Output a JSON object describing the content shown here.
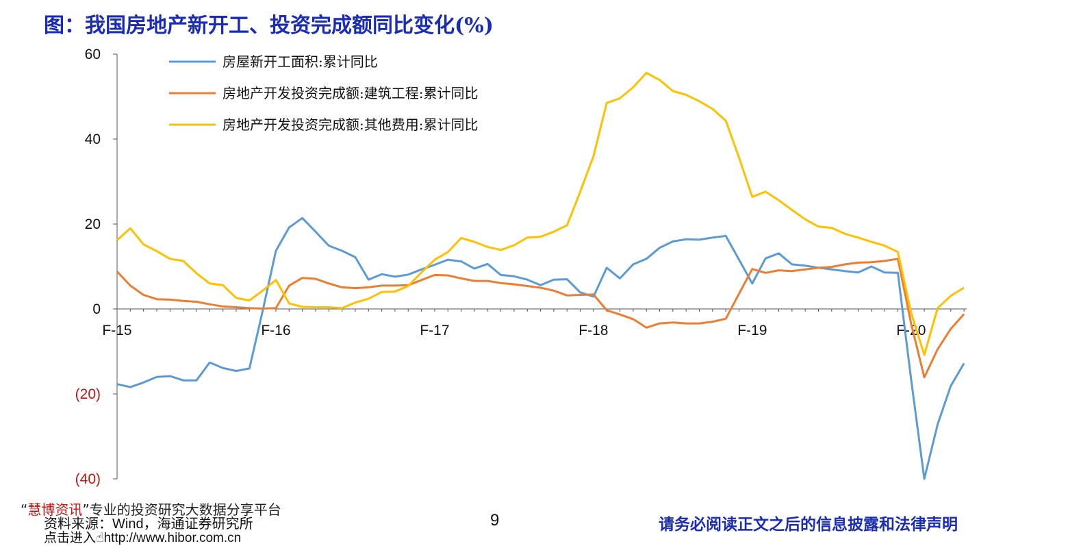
{
  "page": {
    "title": "图：我国房地产新开工、投资完成额同比变化(%)",
    "promo_quote_open": "“",
    "promo_brand": "慧博资讯",
    "promo_text": "”专业的投资研究大数据分享平台",
    "source_label": "资料来源：",
    "source_value": "Wind，海通证券研究所",
    "enter_label": "点击进入",
    "enter_url": "http://www.hibor.com.cn",
    "page_number": "9",
    "disclaimer": "请务必阅读正文之后的信息披露和法律声明"
  },
  "colors": {
    "title": "#1a2bb5",
    "series_1": "#5b9bd5",
    "series_2": "#ed7d31",
    "series_3": "#ffc000",
    "negative_tick": "#d01010"
  },
  "chart_data": {
    "type": "line",
    "title": "",
    "xlabel": "",
    "ylabel": "",
    "ylim": [
      -40,
      60
    ],
    "yticks": [
      60,
      40,
      20,
      0,
      -20,
      -40
    ],
    "ytick_labels": [
      "60",
      "40",
      "20",
      "0",
      "(20)",
      "(40)"
    ],
    "grid": false,
    "legend_position": "top-left",
    "x_start": "2015-02",
    "x_tick_labels": [
      {
        "label": "F-15",
        "index": 0
      },
      {
        "label": "F-16",
        "index": 12
      },
      {
        "label": "F-17",
        "index": 24
      },
      {
        "label": "F-18",
        "index": 36
      },
      {
        "label": "F-19",
        "index": 48
      },
      {
        "label": "F-20",
        "index": 60
      }
    ],
    "series": [
      {
        "name": "房屋新开工面积:累计同比",
        "color": "#5b9bd5",
        "values": [
          -17.7,
          -18.4,
          -17.3,
          -16.0,
          -15.8,
          -16.8,
          -16.8,
          -12.6,
          -13.9,
          -14.6,
          -14.0,
          -0.5,
          13.7,
          19.2,
          21.4,
          18.2,
          14.9,
          13.7,
          12.2,
          6.9,
          8.2,
          7.6,
          8.1,
          9.3,
          10.4,
          11.6,
          11.2,
          9.5,
          10.6,
          8.0,
          7.7,
          6.9,
          5.6,
          6.9,
          7.0,
          3.9,
          2.9,
          9.7,
          7.2,
          10.5,
          11.8,
          14.4,
          15.9,
          16.4,
          16.3,
          16.8,
          17.2,
          11.6,
          6.0,
          11.9,
          13.1,
          10.5,
          10.2,
          9.7,
          9.3,
          8.9,
          8.6,
          10.0,
          8.6,
          8.5,
          -16.5,
          -44.9,
          -27.2,
          -18.1,
          -12.8
        ]
      },
      {
        "name": "房地产开发投资完成额:建筑工程:累计同比",
        "color": "#ed7d31",
        "values": [
          8.8,
          5.5,
          3.3,
          2.3,
          2.2,
          1.9,
          1.7,
          1.1,
          0.6,
          0.4,
          0.2,
          0.1,
          0.2,
          5.5,
          7.3,
          7.1,
          6.0,
          5.1,
          4.9,
          5.1,
          5.5,
          5.5,
          5.6,
          6.8,
          8.0,
          7.9,
          7.2,
          6.6,
          6.6,
          6.1,
          5.8,
          5.4,
          5.0,
          4.3,
          3.2,
          3.3,
          3.4,
          -0.3,
          -1.3,
          -2.4,
          -4.4,
          -3.4,
          -3.2,
          -3.4,
          -3.4,
          -3.0,
          -2.3,
          3.6,
          9.4,
          8.5,
          9.1,
          8.9,
          9.3,
          9.7,
          9.9,
          10.5,
          10.9,
          11.0,
          11.3,
          11.8,
          -3.4,
          -16.1,
          -9.5,
          -4.7,
          -1.2
        ]
      },
      {
        "name": "房地产开发投资完成额:其他费用:累计同比",
        "color": "#ffc000",
        "values": [
          16.2,
          19.0,
          15.2,
          13.6,
          11.8,
          11.3,
          8.4,
          6.0,
          5.6,
          2.6,
          2.0,
          4.3,
          6.8,
          1.3,
          0.5,
          0.4,
          0.4,
          0.2,
          1.5,
          2.4,
          4.0,
          4.1,
          5.4,
          8.6,
          11.6,
          13.4,
          16.7,
          15.8,
          14.6,
          13.9,
          15.0,
          16.8,
          17.0,
          18.2,
          19.7,
          27.6,
          36.0,
          48.5,
          49.6,
          52.2,
          55.6,
          53.9,
          51.3,
          50.4,
          48.9,
          47.1,
          44.3,
          35.6,
          26.4,
          27.6,
          25.6,
          23.3,
          21.1,
          19.4,
          19.1,
          17.7,
          16.8,
          15.8,
          14.9,
          13.4,
          -0.9,
          -10.8,
          0.2,
          3.1,
          5.0
        ]
      }
    ]
  }
}
